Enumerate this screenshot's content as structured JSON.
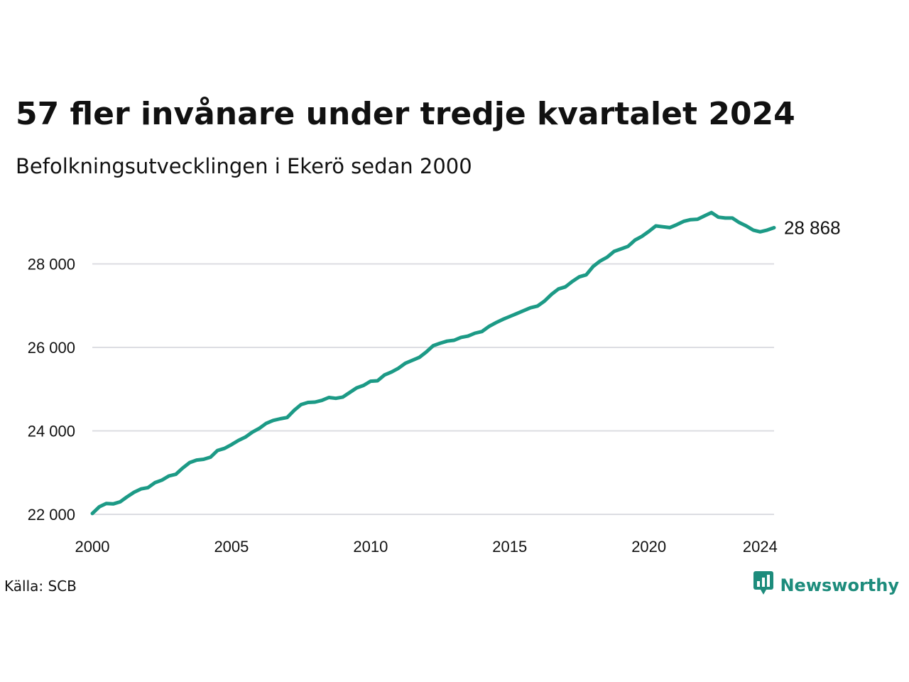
{
  "title": "57 fler invånare under tredje kvartalet 2024",
  "subtitle": "Befolkningsutvecklingen i Ekerö sedan 2000",
  "source": "Källa: SCB",
  "brand": "Newsworthy",
  "colors": {
    "line": "#1c9a86",
    "grid": "#dcdde2",
    "brand": "#1d8c7c"
  },
  "icons": {
    "brand_logo": "newsworthy-logo-icon"
  },
  "chart_data": {
    "type": "line",
    "title": "57 fler invånare under tredje kvartalet 2024",
    "subtitle": "Befolkningsutvecklingen i Ekerö sedan 2000",
    "xlabel": "",
    "ylabel": "",
    "grid": "horizontal",
    "legend": "none",
    "xlim": [
      "2000-Q1",
      "2024-Q3"
    ],
    "ylim": [
      22000,
      29500
    ],
    "x_ticks": [
      "2000",
      "2005",
      "2010",
      "2015",
      "2020",
      "2024"
    ],
    "y_ticks": [
      22000,
      24000,
      26000,
      28000
    ],
    "y_tick_labels": [
      "22 000",
      "24 000",
      "26 000",
      "28 000"
    ],
    "end_label": "28 868",
    "series": [
      {
        "x": [
          "2000-Q1",
          "2000-Q2",
          "2000-Q3",
          "2000-Q4",
          "2001-Q1",
          "2001-Q2",
          "2001-Q3",
          "2001-Q4",
          "2002-Q1",
          "2002-Q2",
          "2002-Q3",
          "2002-Q4",
          "2003-Q1",
          "2003-Q2",
          "2003-Q3",
          "2003-Q4",
          "2004-Q1",
          "2004-Q2",
          "2004-Q3",
          "2004-Q4",
          "2005-Q1",
          "2005-Q2",
          "2005-Q3",
          "2005-Q4",
          "2006-Q1",
          "2006-Q2",
          "2006-Q3",
          "2006-Q4",
          "2007-Q1",
          "2007-Q2",
          "2007-Q3",
          "2007-Q4",
          "2008-Q1",
          "2008-Q2",
          "2008-Q3",
          "2008-Q4",
          "2009-Q1",
          "2009-Q2",
          "2009-Q3",
          "2009-Q4",
          "2010-Q1",
          "2010-Q2",
          "2010-Q3",
          "2010-Q4",
          "2011-Q1",
          "2011-Q2",
          "2011-Q3",
          "2011-Q4",
          "2012-Q1",
          "2012-Q2",
          "2012-Q3",
          "2012-Q4",
          "2013-Q1",
          "2013-Q2",
          "2013-Q3",
          "2013-Q4",
          "2014-Q1",
          "2014-Q2",
          "2014-Q3",
          "2014-Q4",
          "2015-Q1",
          "2015-Q2",
          "2015-Q3",
          "2015-Q4",
          "2016-Q1",
          "2016-Q2",
          "2016-Q3",
          "2016-Q4",
          "2017-Q1",
          "2017-Q2",
          "2017-Q3",
          "2017-Q4",
          "2018-Q1",
          "2018-Q2",
          "2018-Q3",
          "2018-Q4",
          "2019-Q1",
          "2019-Q2",
          "2019-Q3",
          "2019-Q4",
          "2020-Q1",
          "2020-Q2",
          "2020-Q3",
          "2020-Q4",
          "2021-Q1",
          "2021-Q2",
          "2021-Q3",
          "2021-Q4",
          "2022-Q1",
          "2022-Q2",
          "2022-Q3",
          "2022-Q4",
          "2023-Q1",
          "2023-Q2",
          "2023-Q3",
          "2023-Q4",
          "2024-Q1",
          "2024-Q2",
          "2024-Q3"
        ],
        "values": [
          22020,
          22180,
          22260,
          22250,
          22300,
          22420,
          22530,
          22610,
          22640,
          22760,
          22820,
          22920,
          22960,
          23110,
          23240,
          23300,
          23320,
          23370,
          23530,
          23580,
          23670,
          23770,
          23850,
          23970,
          24060,
          24180,
          24250,
          24290,
          24320,
          24490,
          24630,
          24680,
          24690,
          24730,
          24800,
          24780,
          24810,
          24920,
          25030,
          25090,
          25190,
          25200,
          25340,
          25410,
          25500,
          25620,
          25690,
          25760,
          25890,
          26040,
          26100,
          26150,
          26170,
          26240,
          26270,
          26340,
          26380,
          26500,
          26590,
          26670,
          26740,
          26810,
          26880,
          26950,
          26990,
          27110,
          27270,
          27400,
          27450,
          27580,
          27690,
          27740,
          27940,
          28070,
          28160,
          28300,
          28360,
          28420,
          28570,
          28660,
          28780,
          28910,
          28890,
          28870,
          28940,
          29020,
          29060,
          29070,
          29150,
          29230,
          29120,
          29100,
          29100,
          28990,
          28910,
          28810,
          28770,
          28811,
          28868
        ]
      }
    ]
  }
}
